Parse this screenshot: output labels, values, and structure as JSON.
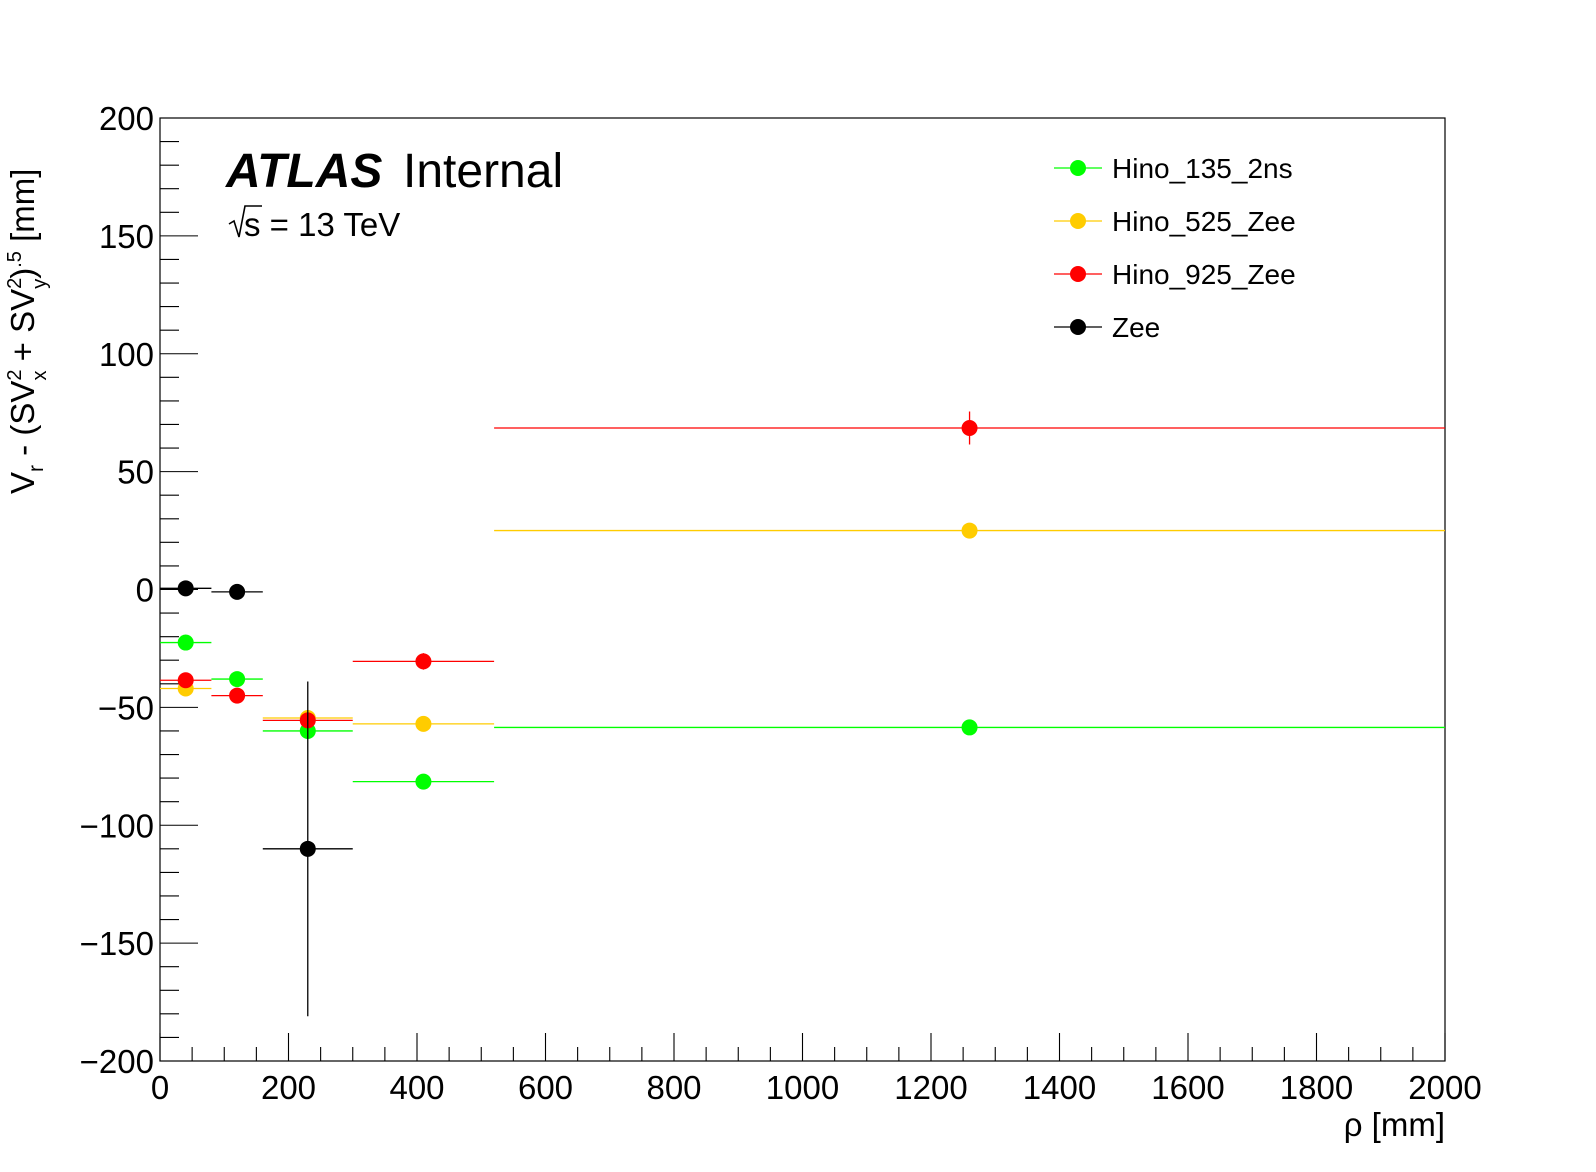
{
  "chart_data": {
    "type": "scatter",
    "title": "",
    "xlabel": "ρ [mm]",
    "ylabel_parts": {
      "v": "V",
      "r": "r",
      "mid": " - (SV",
      "sq1": "2",
      "x": "x",
      "plus": " + SV",
      "sq2": "2",
      "y": "y",
      "close": ")",
      "exp": ".5",
      "unit": " [mm]"
    },
    "xlim": [
      0,
      2000
    ],
    "ylim": [
      -200,
      200
    ],
    "x_major_ticks": [
      0,
      200,
      400,
      600,
      800,
      1000,
      1200,
      1400,
      1600,
      1800,
      2000
    ],
    "x_tick_labels": [
      "0",
      "200",
      "400",
      "600",
      "800",
      "1000",
      "1200",
      "1400",
      "1600",
      "1800",
      "2000"
    ],
    "y_major_ticks": [
      -200,
      -150,
      -100,
      -50,
      0,
      50,
      100,
      150,
      200
    ],
    "y_tick_labels": [
      "−200",
      "−150",
      "−100",
      "−50",
      "0",
      "50",
      "100",
      "150",
      "200"
    ],
    "grid": false,
    "legend_position": "top-right",
    "annotations": {
      "atlas": "ATLAS",
      "internal": "Internal",
      "energy_sqrt": "s",
      "energy_rest": " = 13 TeV"
    },
    "series": [
      {
        "name": "Hino_135_2ns",
        "color": "#00ff00",
        "points": [
          {
            "x": 40,
            "y": -22.5,
            "xlo": 0,
            "xhi": 80,
            "ey": 1
          },
          {
            "x": 120,
            "y": -38,
            "xlo": 80,
            "xhi": 160,
            "ey": 1
          },
          {
            "x": 230,
            "y": -60,
            "xlo": 160,
            "xhi": 300,
            "ey": 2
          },
          {
            "x": 410,
            "y": -81.5,
            "xlo": 300,
            "xhi": 520,
            "ey": 1.5
          },
          {
            "x": 1260,
            "y": -58.5,
            "xlo": 520,
            "xhi": 2000,
            "ey": 1
          }
        ]
      },
      {
        "name": "Hino_525_Zee",
        "color": "#ffcc00",
        "points": [
          {
            "x": 40,
            "y": -42,
            "xlo": 0,
            "xhi": 80,
            "ey": 1
          },
          {
            "x": 230,
            "y": -54.5,
            "xlo": 160,
            "xhi": 300,
            "ey": 1.5
          },
          {
            "x": 410,
            "y": -57,
            "xlo": 300,
            "xhi": 520,
            "ey": 1
          },
          {
            "x": 1260,
            "y": 25,
            "xlo": 520,
            "xhi": 2000,
            "ey": 1
          }
        ]
      },
      {
        "name": "Hino_925_Zee",
        "color": "#ff0000",
        "points": [
          {
            "x": 40,
            "y": -38.5,
            "xlo": 0,
            "xhi": 80,
            "ey": 1
          },
          {
            "x": 120,
            "y": -45,
            "xlo": 80,
            "xhi": 160,
            "ey": 1
          },
          {
            "x": 230,
            "y": -55.5,
            "xlo": 160,
            "xhi": 300,
            "ey": 2
          },
          {
            "x": 410,
            "y": -30.5,
            "xlo": 300,
            "xhi": 520,
            "ey": 3.5
          },
          {
            "x": 1260,
            "y": 68.5,
            "xlo": 520,
            "xhi": 2000,
            "ey": 7
          }
        ]
      },
      {
        "name": "Zee",
        "color": "#000000",
        "points": [
          {
            "x": 40,
            "y": 0.5,
            "xlo": 0,
            "xhi": 80,
            "ey": 0.5
          },
          {
            "x": 120,
            "y": -1,
            "xlo": 80,
            "xhi": 160,
            "ey": 0.5
          },
          {
            "x": 230,
            "y": -110,
            "xlo": 160,
            "xhi": 300,
            "ey": 71
          }
        ]
      }
    ]
  }
}
